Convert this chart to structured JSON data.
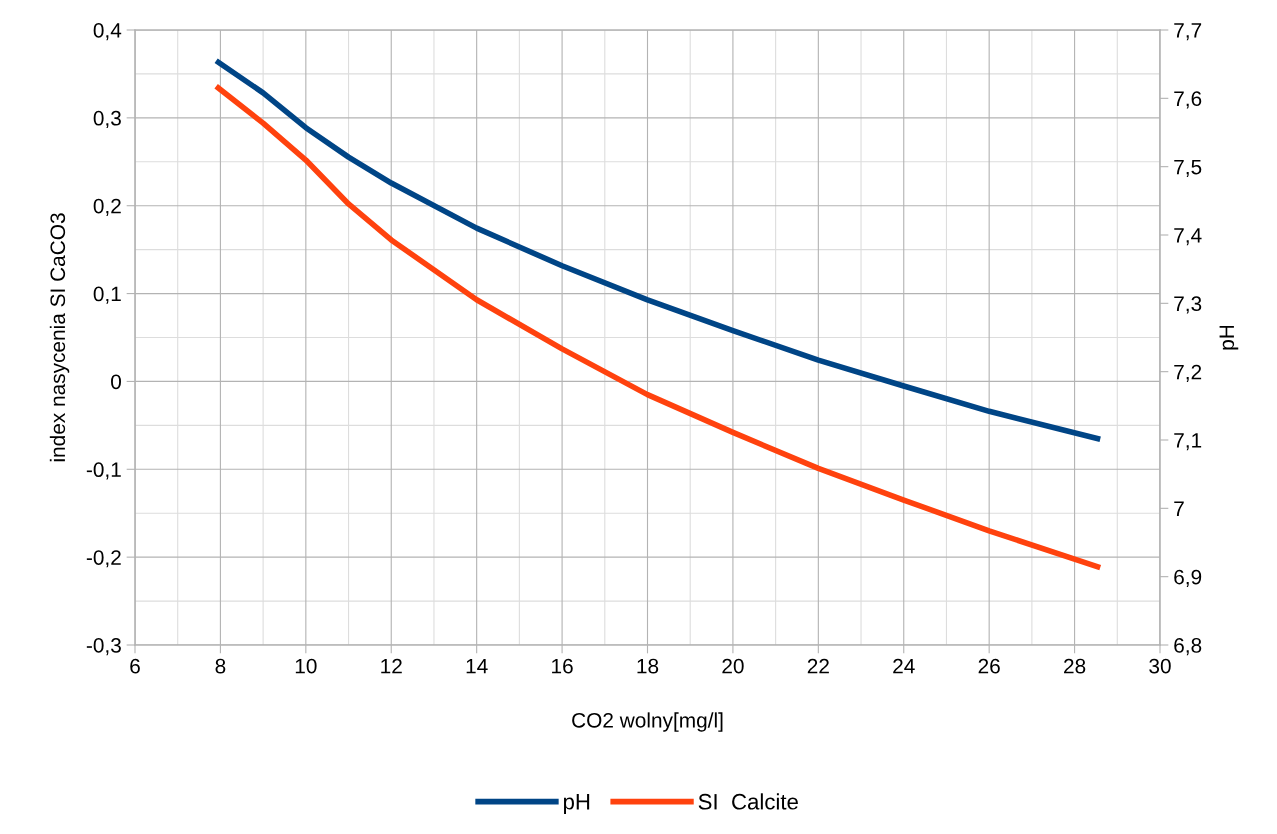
{
  "chart_data": {
    "type": "line",
    "xlabel": "CO2 wolny[mg/l]",
    "ylabel": "index nasycenia SI CaCO3",
    "y2label": "pH",
    "series": [
      {
        "name": "pH",
        "color": "#004586",
        "axis": "y2",
        "x": [
          7.9,
          9,
          10,
          11,
          12,
          14,
          16,
          18,
          20,
          22,
          24,
          26,
          28.6
        ],
        "values": [
          7.655,
          7.608,
          7.557,
          7.514,
          7.476,
          7.41,
          7.355,
          7.305,
          7.26,
          7.217,
          7.179,
          7.142,
          7.101
        ]
      },
      {
        "name": "SI  Calcite",
        "color": "#ff420e",
        "x": [
          7.9,
          9,
          10,
          11,
          12,
          14,
          16,
          18,
          20,
          22,
          24,
          26,
          28.6
        ],
        "values": [
          0.336,
          0.294,
          0.252,
          0.202,
          0.161,
          0.093,
          0.037,
          -0.015,
          -0.058,
          -0.099,
          -0.135,
          -0.17,
          -0.212
        ]
      }
    ],
    "xlim": [
      6,
      30
    ],
    "xticks": [
      6,
      8,
      10,
      12,
      14,
      16,
      18,
      20,
      22,
      24,
      26,
      28,
      30
    ],
    "ylim": [
      -0.3,
      0.4
    ],
    "yticks": [
      {
        "value": -0.3,
        "label": "-0,3"
      },
      {
        "value": -0.2,
        "label": "-0,2"
      },
      {
        "value": -0.1,
        "label": "-0,1"
      },
      0,
      {
        "value": 0.1,
        "label": "0,1"
      },
      {
        "value": 0.2,
        "label": "0,2"
      },
      {
        "value": 0.3,
        "label": "0,3"
      },
      {
        "value": 0.4,
        "label": "0,4"
      }
    ],
    "y2lim": [
      6.8,
      7.7
    ],
    "y2ticks": [
      {
        "value": 6.8,
        "label": "6,8"
      },
      {
        "value": 6.9,
        "label": "6,9"
      },
      7,
      {
        "value": 7.1,
        "label": "7,1"
      },
      {
        "value": 7.2,
        "label": "7,2"
      },
      {
        "value": 7.3,
        "label": "7,3"
      },
      {
        "value": 7.4,
        "label": "7,4"
      },
      {
        "value": 7.5,
        "label": "7,5"
      },
      {
        "value": 7.6,
        "label": "7,6"
      },
      {
        "value": 7.7,
        "label": "7,7"
      }
    ],
    "grid": true,
    "legend": "bottom",
    "marker": "none",
    "line_style": "solid"
  }
}
